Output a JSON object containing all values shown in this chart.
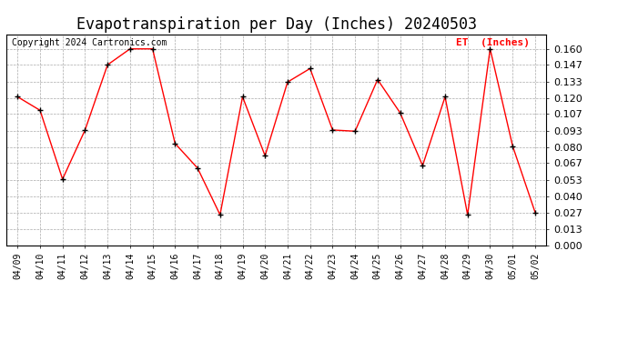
{
  "title": "Evapotranspiration per Day (Inches) 20240503",
  "copyright": "Copyright 2024 Cartronics.com",
  "legend_label": "ET  (Inches)",
  "dates": [
    "04/09",
    "04/10",
    "04/11",
    "04/12",
    "04/13",
    "04/14",
    "04/15",
    "04/16",
    "04/17",
    "04/18",
    "04/19",
    "04/20",
    "04/21",
    "04/22",
    "04/23",
    "04/24",
    "04/25",
    "04/26",
    "04/27",
    "04/28",
    "04/29",
    "04/30",
    "05/01",
    "05/02"
  ],
  "values": [
    0.121,
    0.11,
    0.054,
    0.094,
    0.147,
    0.16,
    0.16,
    0.083,
    0.063,
    0.025,
    0.121,
    0.073,
    0.133,
    0.144,
    0.094,
    0.093,
    0.135,
    0.108,
    0.065,
    0.121,
    0.025,
    0.16,
    0.081,
    0.027
  ],
  "ylim": [
    0.0,
    0.172
  ],
  "yticks": [
    0.0,
    0.013,
    0.027,
    0.04,
    0.053,
    0.067,
    0.08,
    0.093,
    0.107,
    0.12,
    0.133,
    0.147,
    0.16
  ],
  "line_color": "red",
  "marker_color": "black",
  "grid_color": "#aaaaaa",
  "bg_color": "#ffffff",
  "title_fontsize": 12,
  "copyright_fontsize": 7,
  "legend_color": "red"
}
